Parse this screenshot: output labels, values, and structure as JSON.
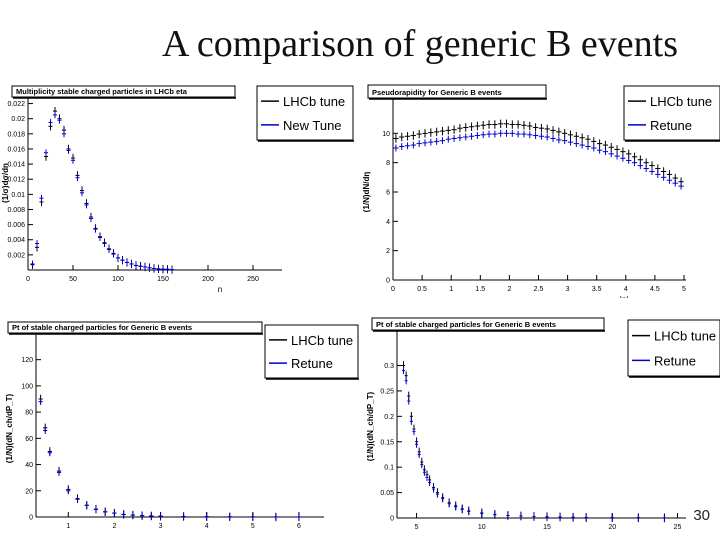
{
  "slide": {
    "title": "A comparison of generic B events",
    "page_number": "30"
  },
  "chart_data": [
    {
      "type": "line",
      "title": "Multiplicity stable charged particles in LHCb eta",
      "xlabel": "n",
      "ylabel": "(1/σ)dσ/dn",
      "xlim": [
        0,
        280
      ],
      "ylim": [
        0,
        0.023
      ],
      "xticks": [
        "0",
        "50",
        "100",
        "150",
        "200",
        "250"
      ],
      "yticks": [
        "0.002",
        "0.004",
        "0.006",
        "0.008",
        "0.01",
        "0.012",
        "0.014",
        "0.016",
        "0.018",
        "0.02",
        "0.022"
      ],
      "legend": "top-right",
      "grid": false,
      "series": [
        {
          "name": "LHCb tune",
          "color": "#000000",
          "x": [
            5,
            10,
            15,
            20,
            25,
            30,
            35,
            40,
            45,
            50,
            55,
            60,
            65,
            70,
            75,
            80,
            85,
            90,
            95,
            100,
            105,
            110,
            115,
            120,
            125,
            130,
            135,
            140,
            145,
            150,
            155,
            160
          ],
          "y": [
            0.0007,
            0.003,
            0.009,
            0.015,
            0.019,
            0.021,
            0.02,
            0.0185,
            0.016,
            0.0148,
            0.0125,
            0.0105,
            0.0088,
            0.007,
            0.0055,
            0.0044,
            0.0036,
            0.0028,
            0.0022,
            0.0016,
            0.0013,
            0.001,
            0.0008,
            0.0006,
            0.0005,
            0.0004,
            0.0003,
            0.0002,
            0.00015,
            0.0001,
            0.0001,
            5e-05
          ]
        },
        {
          "name": "New Tune",
          "color": "#0000cc",
          "x": [
            5,
            10,
            15,
            20,
            25,
            30,
            35,
            40,
            45,
            50,
            55,
            60,
            65,
            70,
            75,
            80,
            85,
            90,
            95,
            100,
            105,
            110,
            115,
            120,
            125,
            130,
            135,
            140,
            145,
            150,
            155,
            160
          ],
          "y": [
            0.0008,
            0.0035,
            0.0095,
            0.0155,
            0.0195,
            0.0205,
            0.0198,
            0.018,
            0.0158,
            0.0145,
            0.0122,
            0.0102,
            0.0086,
            0.0068,
            0.0054,
            0.0043,
            0.0035,
            0.0027,
            0.0021,
            0.0016,
            0.0013,
            0.001,
            0.0008,
            0.0006,
            0.0005,
            0.0004,
            0.0003,
            0.0002,
            0.00015,
            0.0001,
            0.0001,
            5e-05
          ]
        }
      ]
    },
    {
      "type": "line",
      "title": "Pseudorapidity for Generic B events",
      "xlabel": "|η|",
      "ylabel": "(1/N)dN/dη",
      "xlim": [
        0,
        5
      ],
      "ylim": [
        0,
        12
      ],
      "xticks": [
        "0",
        "0.5",
        "1",
        "1.5",
        "2",
        "2.5",
        "3",
        "3.5",
        "4",
        "4.5",
        "5"
      ],
      "yticks": [
        "0",
        "2",
        "4",
        "6",
        "8",
        "10"
      ],
      "legend": "top-right",
      "grid": false,
      "series": [
        {
          "name": "LHCb tune",
          "color": "#000000",
          "x": [
            0.05,
            0.15,
            0.25,
            0.35,
            0.45,
            0.55,
            0.65,
            0.75,
            0.85,
            0.95,
            1.05,
            1.15,
            1.25,
            1.35,
            1.45,
            1.55,
            1.65,
            1.75,
            1.85,
            1.95,
            2.05,
            2.15,
            2.25,
            2.35,
            2.45,
            2.55,
            2.65,
            2.75,
            2.85,
            2.95,
            3.05,
            3.15,
            3.25,
            3.35,
            3.45,
            3.55,
            3.65,
            3.75,
            3.85,
            3.95,
            4.05,
            4.15,
            4.25,
            4.35,
            4.45,
            4.55,
            4.65,
            4.75,
            4.85,
            4.95
          ],
          "y": [
            9.65,
            9.75,
            9.8,
            9.85,
            9.95,
            10.0,
            10.05,
            10.1,
            10.15,
            10.2,
            10.25,
            10.35,
            10.4,
            10.45,
            10.5,
            10.55,
            10.6,
            10.6,
            10.65,
            10.65,
            10.6,
            10.6,
            10.55,
            10.5,
            10.4,
            10.35,
            10.3,
            10.2,
            10.1,
            10.0,
            9.9,
            9.8,
            9.7,
            9.6,
            9.45,
            9.3,
            9.2,
            9.05,
            8.9,
            8.75,
            8.6,
            8.4,
            8.2,
            8.0,
            7.8,
            7.6,
            7.4,
            7.2,
            6.95,
            6.7
          ]
        },
        {
          "name": "Retune",
          "color": "#0000cc",
          "x": [
            0.05,
            0.15,
            0.25,
            0.35,
            0.45,
            0.55,
            0.65,
            0.75,
            0.85,
            0.95,
            1.05,
            1.15,
            1.25,
            1.35,
            1.45,
            1.55,
            1.65,
            1.75,
            1.85,
            1.95,
            2.05,
            2.15,
            2.25,
            2.35,
            2.45,
            2.55,
            2.65,
            2.75,
            2.85,
            2.95,
            3.05,
            3.15,
            3.25,
            3.35,
            3.45,
            3.55,
            3.65,
            3.75,
            3.85,
            3.95,
            4.05,
            4.15,
            4.25,
            4.35,
            4.45,
            4.55,
            4.65,
            4.75,
            4.85,
            4.95
          ],
          "y": [
            9.0,
            9.1,
            9.15,
            9.2,
            9.3,
            9.35,
            9.4,
            9.45,
            9.5,
            9.6,
            9.65,
            9.7,
            9.75,
            9.8,
            9.85,
            9.9,
            9.95,
            9.95,
            10.0,
            10.0,
            10.0,
            9.95,
            9.95,
            9.9,
            9.85,
            9.8,
            9.75,
            9.65,
            9.55,
            9.5,
            9.4,
            9.3,
            9.2,
            9.1,
            9.0,
            8.85,
            8.75,
            8.6,
            8.45,
            8.3,
            8.15,
            8.0,
            7.8,
            7.6,
            7.4,
            7.2,
            7.0,
            6.8,
            6.6,
            6.4
          ]
        }
      ]
    },
    {
      "type": "line",
      "title": "Pt of stable charged particles for Generic B events",
      "xlabel": "P_T/GeV",
      "ylabel": "(1/N)(dN_ch/dP_T)",
      "xlim": [
        0.3,
        6.5
      ],
      "ylim": [
        0,
        135
      ],
      "xticks": [
        "1",
        "2",
        "3",
        "4",
        "5",
        "6"
      ],
      "yticks": [
        "0",
        "20",
        "40",
        "60",
        "80",
        "100",
        "120"
      ],
      "legend": "top-right",
      "grid": false,
      "series": [
        {
          "name": "LHCb tune",
          "color": "#000000",
          "x": [
            0.4,
            0.5,
            0.6,
            0.8,
            1.0,
            1.2,
            1.4,
            1.6,
            1.8,
            2.0,
            2.2,
            2.4,
            2.6,
            2.8,
            3.0,
            3.5,
            4.0,
            4.5,
            5.0,
            5.5,
            6.0
          ],
          "y": [
            90,
            68,
            50,
            35,
            21,
            14,
            9,
            6,
            4,
            3,
            2,
            1.5,
            1.0,
            0.8,
            0.6,
            0.4,
            0.25,
            0.15,
            0.1,
            0.06,
            0.04
          ]
        },
        {
          "name": "Retune",
          "color": "#0000cc",
          "x": [
            0.4,
            0.5,
            0.6,
            0.8,
            1.0,
            1.2,
            1.4,
            1.6,
            1.8,
            2.0,
            2.2,
            2.4,
            2.6,
            2.8,
            3.0,
            3.5,
            4.0,
            4.5,
            5.0,
            5.5,
            6.0
          ],
          "y": [
            88,
            66,
            49,
            34,
            20,
            13.5,
            8.8,
            5.8,
            3.9,
            2.9,
            1.9,
            1.4,
            1.0,
            0.8,
            0.6,
            0.4,
            0.25,
            0.15,
            0.1,
            0.06,
            0.04
          ]
        }
      ]
    },
    {
      "type": "line",
      "title": "Pt of stable charged particles for Generic B events",
      "xlabel": "P_T/GeV",
      "ylabel": "(1/N)(dN_ch/dP_T)",
      "xlim": [
        3.5,
        25.5
      ],
      "ylim": [
        0,
        0.36
      ],
      "xticks": [
        "5",
        "10",
        "15",
        "20",
        "25"
      ],
      "yticks": [
        "0",
        "0.05",
        "0.1",
        "0.15",
        "0.2",
        "0.25",
        "0.3"
      ],
      "legend": "top-right",
      "grid": false,
      "series": [
        {
          "name": "LHCb tune",
          "color": "#000000",
          "x": [
            4.0,
            4.2,
            4.4,
            4.6,
            4.8,
            5.0,
            5.2,
            5.4,
            5.6,
            5.8,
            6.0,
            6.3,
            6.6,
            7.0,
            7.5,
            8.0,
            8.5,
            9.0,
            10,
            11,
            12,
            13,
            14,
            15,
            16,
            17,
            18,
            20,
            22,
            24
          ],
          "y": [
            0.3,
            0.28,
            0.24,
            0.2,
            0.175,
            0.15,
            0.13,
            0.11,
            0.095,
            0.085,
            0.075,
            0.06,
            0.05,
            0.04,
            0.03,
            0.024,
            0.018,
            0.014,
            0.01,
            0.007,
            0.005,
            0.004,
            0.003,
            0.0025,
            0.002,
            0.0015,
            0.001,
            0.0008,
            0.0005,
            0.0003
          ]
        },
        {
          "name": "Retune",
          "color": "#0000cc",
          "x": [
            4.0,
            4.2,
            4.4,
            4.6,
            4.8,
            5.0,
            5.2,
            5.4,
            5.6,
            5.8,
            6.0,
            6.3,
            6.6,
            7.0,
            7.5,
            8.0,
            8.5,
            9.0,
            10,
            11,
            12,
            13,
            14,
            15,
            16,
            17,
            18,
            20,
            22,
            24
          ],
          "y": [
            0.29,
            0.27,
            0.23,
            0.19,
            0.17,
            0.145,
            0.125,
            0.105,
            0.09,
            0.08,
            0.07,
            0.057,
            0.047,
            0.038,
            0.028,
            0.022,
            0.017,
            0.013,
            0.009,
            0.0065,
            0.0048,
            0.0038,
            0.0028,
            0.0023,
            0.0018,
            0.0014,
            0.001,
            0.0007,
            0.0005,
            0.0003
          ]
        }
      ]
    }
  ]
}
